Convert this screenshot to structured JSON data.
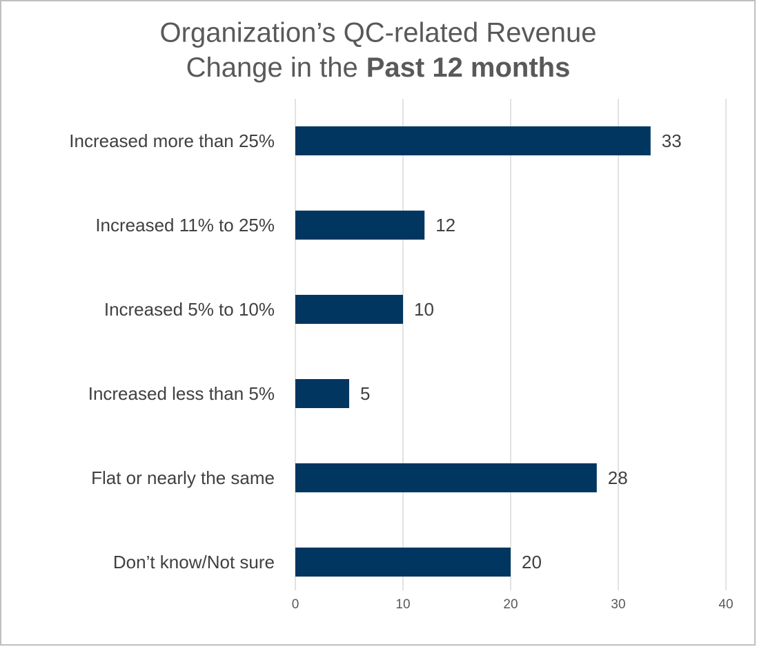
{
  "chart_data": {
    "type": "bar",
    "orientation": "horizontal",
    "title": [
      "Organization’s QC-related Revenue",
      "Change in the",
      "Past 12 months"
    ],
    "categories": [
      "Increased more than 25%",
      "Increased 11% to 25%",
      "Increased 5% to 10%",
      "Increased less than 5%",
      "Flat or nearly the same",
      "Don’t know/Not sure"
    ],
    "values": [
      33,
      12,
      10,
      5,
      28,
      20
    ],
    "color": "#003660",
    "xlim": [
      0,
      40
    ],
    "xticks": [
      0,
      10,
      20,
      30,
      40
    ],
    "grid": true
  }
}
